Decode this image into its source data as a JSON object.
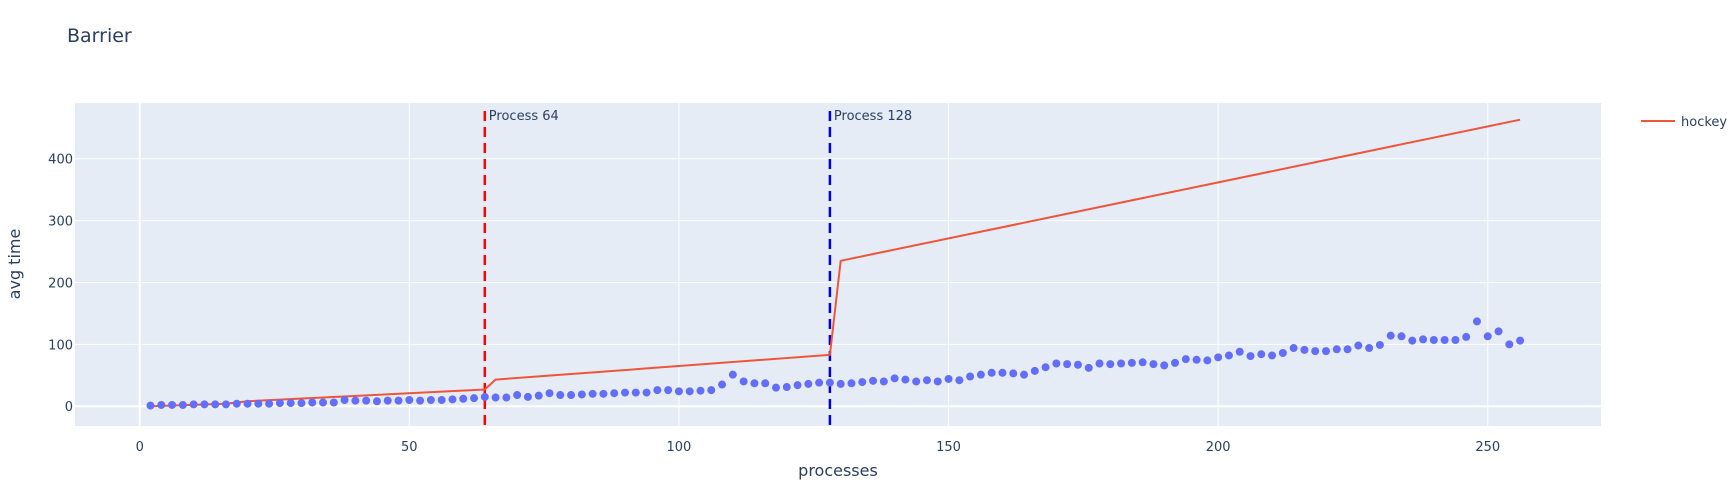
{
  "chart_data": {
    "type": "scatter",
    "title": "Barrier",
    "xlabel": "processes",
    "ylabel": "avg time",
    "xlim": [
      -12,
      271
    ],
    "ylim": [
      -32,
      490
    ],
    "x_ticks": [
      0,
      50,
      100,
      150,
      200,
      250
    ],
    "y_ticks": [
      0,
      100,
      200,
      300,
      400
    ],
    "grid": true,
    "legend_position": "top-right",
    "colors": {
      "plot_bg": "#e5ecf6",
      "grid": "#ffffff",
      "markers": "#636efa",
      "line": "#ef553b",
      "vline_1": "#ff0000",
      "vline_2": "#0000cc"
    },
    "series": [
      {
        "name": "",
        "mode": "markers",
        "x": [
          2,
          4,
          6,
          8,
          10,
          12,
          14,
          16,
          18,
          20,
          22,
          24,
          26,
          28,
          30,
          32,
          34,
          36,
          38,
          40,
          42,
          44,
          46,
          48,
          50,
          52,
          54,
          56,
          58,
          60,
          62,
          64,
          66,
          68,
          70,
          72,
          74,
          76,
          78,
          80,
          82,
          84,
          86,
          88,
          90,
          92,
          94,
          96,
          98,
          100,
          102,
          104,
          106,
          108,
          110,
          112,
          114,
          116,
          118,
          120,
          122,
          124,
          126,
          128,
          130,
          132,
          134,
          136,
          138,
          140,
          142,
          144,
          146,
          148,
          150,
          152,
          154,
          156,
          158,
          160,
          162,
          164,
          166,
          168,
          170,
          172,
          174,
          176,
          178,
          180,
          182,
          184,
          186,
          188,
          190,
          192,
          194,
          196,
          198,
          200,
          202,
          204,
          206,
          208,
          210,
          212,
          214,
          216,
          218,
          220,
          222,
          224,
          226,
          228,
          230,
          232,
          234,
          236,
          238,
          240,
          242,
          244,
          246,
          248,
          250,
          252,
          254,
          256
        ],
        "y": [
          1,
          2,
          2,
          2,
          3,
          3,
          3,
          3,
          4,
          4,
          4,
          4,
          5,
          5,
          5,
          6,
          6,
          6,
          10,
          9,
          9,
          8,
          9,
          9,
          10,
          9,
          10,
          10,
          11,
          12,
          13,
          15,
          14,
          14,
          18,
          15,
          17,
          21,
          18,
          18,
          19,
          20,
          20,
          21,
          22,
          22,
          22,
          26,
          26,
          24,
          24,
          25,
          26,
          35,
          51,
          40,
          37,
          37,
          30,
          31,
          34,
          36,
          38,
          38,
          36,
          37,
          39,
          41,
          40,
          45,
          43,
          40,
          42,
          40,
          44,
          42,
          48,
          51,
          54,
          54,
          53,
          51,
          57,
          63,
          69,
          68,
          67,
          62,
          69,
          68,
          69,
          70,
          71,
          68,
          66,
          70,
          76,
          75,
          74,
          79,
          82,
          88,
          81,
          84,
          82,
          86,
          94,
          91,
          89,
          89,
          92,
          92,
          98,
          94,
          99,
          114,
          113,
          106,
          108,
          107,
          107,
          107,
          112,
          137,
          113,
          121,
          100,
          106
        ]
      },
      {
        "name": "hockey",
        "mode": "lines",
        "x": [
          2,
          16,
          20,
          64,
          66,
          128,
          130,
          256
        ],
        "y": [
          0,
          4,
          8,
          27,
          43,
          83,
          235,
          463
        ]
      }
    ],
    "vlines": [
      {
        "x": 64,
        "label": "Process 64",
        "color": "#ff0000"
      },
      {
        "x": 128,
        "label": "Process 128",
        "color": "#0000cc"
      }
    ]
  }
}
